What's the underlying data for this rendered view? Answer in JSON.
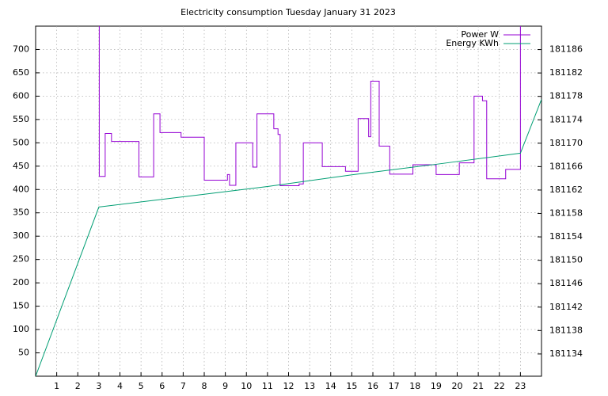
{
  "chart_data": {
    "type": "line",
    "title": "Electricity consumption Tuesday January 31 2023",
    "xlim": [
      0,
      24
    ],
    "xticks": [
      1,
      2,
      3,
      4,
      5,
      6,
      7,
      8,
      9,
      10,
      11,
      12,
      13,
      14,
      15,
      16,
      17,
      18,
      19,
      20,
      21,
      22,
      23
    ],
    "ylim": [
      0,
      750
    ],
    "yticks": [
      50,
      100,
      150,
      200,
      250,
      300,
      350,
      400,
      450,
      500,
      550,
      600,
      650,
      700
    ],
    "y2lim": [
      181130.2,
      181190
    ],
    "y2ticks": [
      181134,
      181138,
      181142,
      181146,
      181150,
      181154,
      181158,
      181162,
      181166,
      181170,
      181174,
      181178,
      181182,
      181186
    ],
    "grid": true,
    "legend": "top-right",
    "series": [
      {
        "name": "Power W",
        "color": "#9400d3",
        "steps": true,
        "x": [
          3,
          3.02,
          3.3,
          3.6,
          4.9,
          5.6,
          5.9,
          6.9,
          8,
          9.1,
          9.2,
          9.5,
          10.3,
          10.5,
          11.3,
          11.5,
          11.6,
          12.5,
          12.7,
          13.6,
          14.7,
          15.3,
          15.8,
          15.9,
          16.3,
          16.8,
          17.9,
          19,
          20.1,
          20.8,
          21.2,
          21.4,
          22.3,
          23
        ],
        "values": [
          750,
          428,
          520,
          503,
          427,
          562,
          522,
          512,
          420,
          432,
          409,
          500,
          448,
          562,
          530,
          518,
          408,
          412,
          500,
          449,
          439,
          552,
          513,
          632,
          493,
          433,
          453,
          432,
          457,
          600,
          590,
          423,
          443,
          750
        ]
      },
      {
        "name": "Energy KWh",
        "color": "#009e73",
        "axis": "y2",
        "x": [
          0,
          3,
          11,
          15,
          19,
          23,
          24
        ],
        "values": [
          181130.2,
          181159.1,
          181162.6,
          181164.6,
          181166.4,
          181168.3,
          181177.5
        ]
      }
    ]
  }
}
